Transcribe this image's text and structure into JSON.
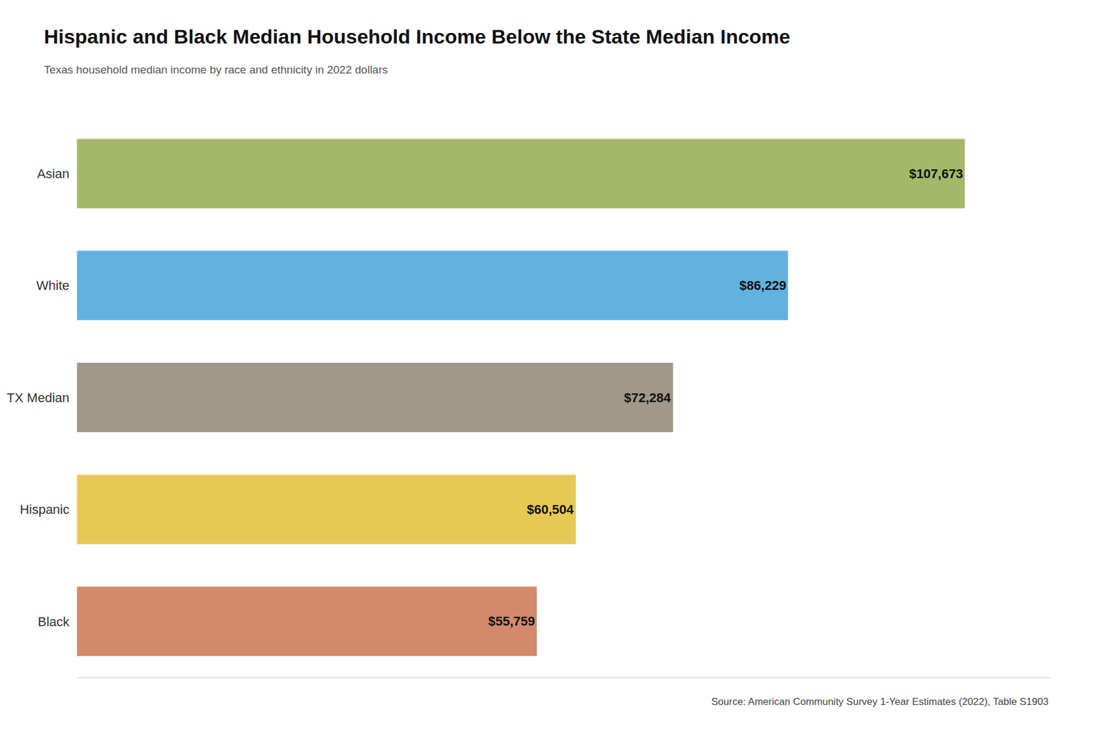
{
  "chart_data": {
    "type": "bar",
    "orientation": "horizontal",
    "title": "Hispanic and Black Median Household Income Below the State Median Income",
    "subtitle": "Texas household median income by race and ethnicity in 2022 dollars",
    "annotations": [
      "Source: American Community Survey 1-Year Estimates (2022), Table S1903"
    ],
    "categories": [
      "Asian",
      "White",
      "TX Median",
      "Hispanic",
      "Black"
    ],
    "values": [
      107673,
      86229,
      72284,
      60504,
      55759
    ],
    "value_labels": [
      "$107,673",
      "$86,229",
      "$72,284",
      "$60,504",
      "$55,759"
    ],
    "colors": [
      "#a4b86a",
      "#62b2e0",
      "#a09888",
      "#e8c855",
      "#d4896a"
    ],
    "xlim": [
      0,
      118000
    ],
    "grid": false,
    "data_labels": true,
    "tick_labels": "y"
  }
}
